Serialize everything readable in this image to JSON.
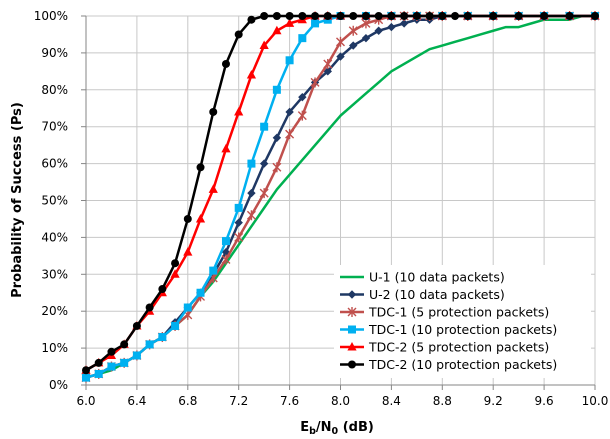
{
  "chart_data": {
    "type": "line",
    "xlabel_parts": {
      "main": "E",
      "sub1": "b",
      "mid": "/N",
      "sub2": "0",
      "tail": " (dB)"
    },
    "ylabel": "Probability of Success (Ps)",
    "xlim": [
      6.0,
      10.0
    ],
    "ylim": [
      0,
      100
    ],
    "x_ticks": [
      "6.0",
      "6.4",
      "6.8",
      "7.2",
      "7.6",
      "8.0",
      "8.4",
      "8.8",
      "9.2",
      "9.6",
      "10.0"
    ],
    "y_ticks": [
      "0%",
      "10%",
      "20%",
      "30%",
      "40%",
      "50%",
      "60%",
      "70%",
      "80%",
      "90%",
      "100%"
    ],
    "grid": true,
    "legend_position": "bottom-right",
    "series": [
      {
        "name": "U-1 (10 data packets)",
        "color": "#00b050",
        "marker": "none",
        "x": [
          6.0,
          6.1,
          6.2,
          6.3,
          6.4,
          6.5,
          6.6,
          6.7,
          6.8,
          6.9,
          7.0,
          7.1,
          7.2,
          7.3,
          7.4,
          7.5,
          7.6,
          7.7,
          7.8,
          7.9,
          8.0,
          8.1,
          8.2,
          8.3,
          8.4,
          8.5,
          8.6,
          8.7,
          8.8,
          8.9,
          9.0,
          9.1,
          9.2,
          9.3,
          9.4,
          9.5,
          9.6,
          9.7,
          9.8,
          9.9,
          10.0
        ],
        "y": [
          2,
          3,
          4,
          6,
          8,
          11,
          13,
          16,
          19,
          24,
          28,
          33,
          38,
          43,
          48,
          53,
          57,
          61,
          65,
          69,
          73,
          76,
          79,
          82,
          85,
          87,
          89,
          91,
          92,
          93,
          94,
          95,
          96,
          97,
          97,
          98,
          99,
          99,
          99,
          100,
          100
        ]
      },
      {
        "name": "U-2 (10 data packets)",
        "color": "#1f3864",
        "marker": "diamond",
        "x": [
          6.0,
          6.1,
          6.2,
          6.3,
          6.4,
          6.5,
          6.6,
          6.7,
          6.8,
          6.9,
          7.0,
          7.1,
          7.2,
          7.3,
          7.4,
          7.5,
          7.6,
          7.7,
          7.8,
          7.9,
          8.0,
          8.1,
          8.2,
          8.3,
          8.4,
          8.5,
          8.6,
          8.7,
          8.8,
          8.9,
          9.0,
          9.2,
          9.4,
          9.6,
          9.8,
          10.0
        ],
        "y": [
          2,
          3,
          5,
          6,
          8,
          11,
          13,
          17,
          21,
          25,
          30,
          36,
          44,
          52,
          60,
          67,
          74,
          78,
          82,
          85,
          89,
          92,
          94,
          96,
          97,
          98,
          99,
          99,
          100,
          100,
          100,
          100,
          100,
          100,
          100,
          100
        ]
      },
      {
        "name": "TDC-1 (5 protection packets)",
        "color": "#c0504d",
        "marker": "star",
        "x": [
          6.0,
          6.1,
          6.2,
          6.3,
          6.4,
          6.5,
          6.6,
          6.7,
          6.8,
          6.9,
          7.0,
          7.1,
          7.2,
          7.3,
          7.4,
          7.5,
          7.6,
          7.7,
          7.8,
          7.9,
          8.0,
          8.1,
          8.2,
          8.3,
          8.4,
          8.5,
          8.6,
          8.7,
          8.8,
          9.0,
          9.2,
          9.4,
          9.6,
          9.8,
          10.0
        ],
        "y": [
          2,
          3,
          5,
          6,
          8,
          11,
          13,
          16,
          19,
          24,
          29,
          34,
          40,
          46,
          52,
          59,
          68,
          73,
          82,
          87,
          93,
          96,
          98,
          99,
          100,
          100,
          100,
          100,
          100,
          100,
          100,
          100,
          100,
          100,
          100
        ]
      },
      {
        "name": "TDC-1 (10 protection packets)",
        "color": "#00b0f0",
        "marker": "square",
        "x": [
          6.0,
          6.1,
          6.2,
          6.3,
          6.4,
          6.5,
          6.6,
          6.7,
          6.8,
          6.9,
          7.0,
          7.1,
          7.2,
          7.3,
          7.4,
          7.5,
          7.6,
          7.7,
          7.8,
          7.9,
          8.0,
          8.2,
          8.4,
          8.6,
          8.8,
          9.0,
          9.2,
          9.4,
          9.6,
          9.8,
          10.0
        ],
        "y": [
          2,
          3,
          5,
          6,
          8,
          11,
          13,
          16,
          21,
          25,
          31,
          39,
          48,
          60,
          70,
          80,
          88,
          94,
          98,
          99,
          100,
          100,
          100,
          100,
          100,
          100,
          100,
          100,
          100,
          100,
          100
        ]
      },
      {
        "name": "TDC-2 (5 protection packets)",
        "color": "#ff0000",
        "marker": "triangle",
        "x": [
          6.0,
          6.1,
          6.2,
          6.3,
          6.4,
          6.5,
          6.6,
          6.7,
          6.8,
          6.9,
          7.0,
          7.1,
          7.2,
          7.3,
          7.4,
          7.5,
          7.6,
          7.7,
          7.8,
          7.9,
          8.0,
          8.2,
          8.4,
          8.6,
          8.8,
          9.0,
          9.2,
          9.4,
          9.6,
          9.8,
          10.0
        ],
        "y": [
          4,
          6,
          8,
          11,
          16,
          20,
          25,
          30,
          36,
          45,
          53,
          64,
          74,
          84,
          92,
          96,
          98,
          99,
          100,
          100,
          100,
          100,
          100,
          100,
          100,
          100,
          100,
          100,
          100,
          100,
          100
        ]
      },
      {
        "name": "TDC-2 (10 protection packets)",
        "color": "#000000",
        "marker": "circle",
        "x": [
          6.0,
          6.1,
          6.2,
          6.3,
          6.4,
          6.5,
          6.6,
          6.7,
          6.8,
          6.9,
          7.0,
          7.1,
          7.2,
          7.3,
          7.4,
          7.5,
          7.6,
          7.7,
          7.8,
          7.9,
          8.0,
          8.1,
          8.2,
          8.3,
          8.4,
          8.5,
          8.6,
          8.7,
          8.8,
          8.9,
          9.0,
          9.2,
          9.4,
          9.6,
          9.8,
          10.0
        ],
        "y": [
          4,
          6,
          9,
          11,
          16,
          21,
          26,
          33,
          45,
          59,
          74,
          87,
          95,
          99,
          100,
          100,
          100,
          100,
          100,
          100,
          100,
          100,
          100,
          100,
          100,
          100,
          100,
          100,
          100,
          100,
          100,
          100,
          100,
          100,
          100,
          100
        ]
      }
    ]
  }
}
